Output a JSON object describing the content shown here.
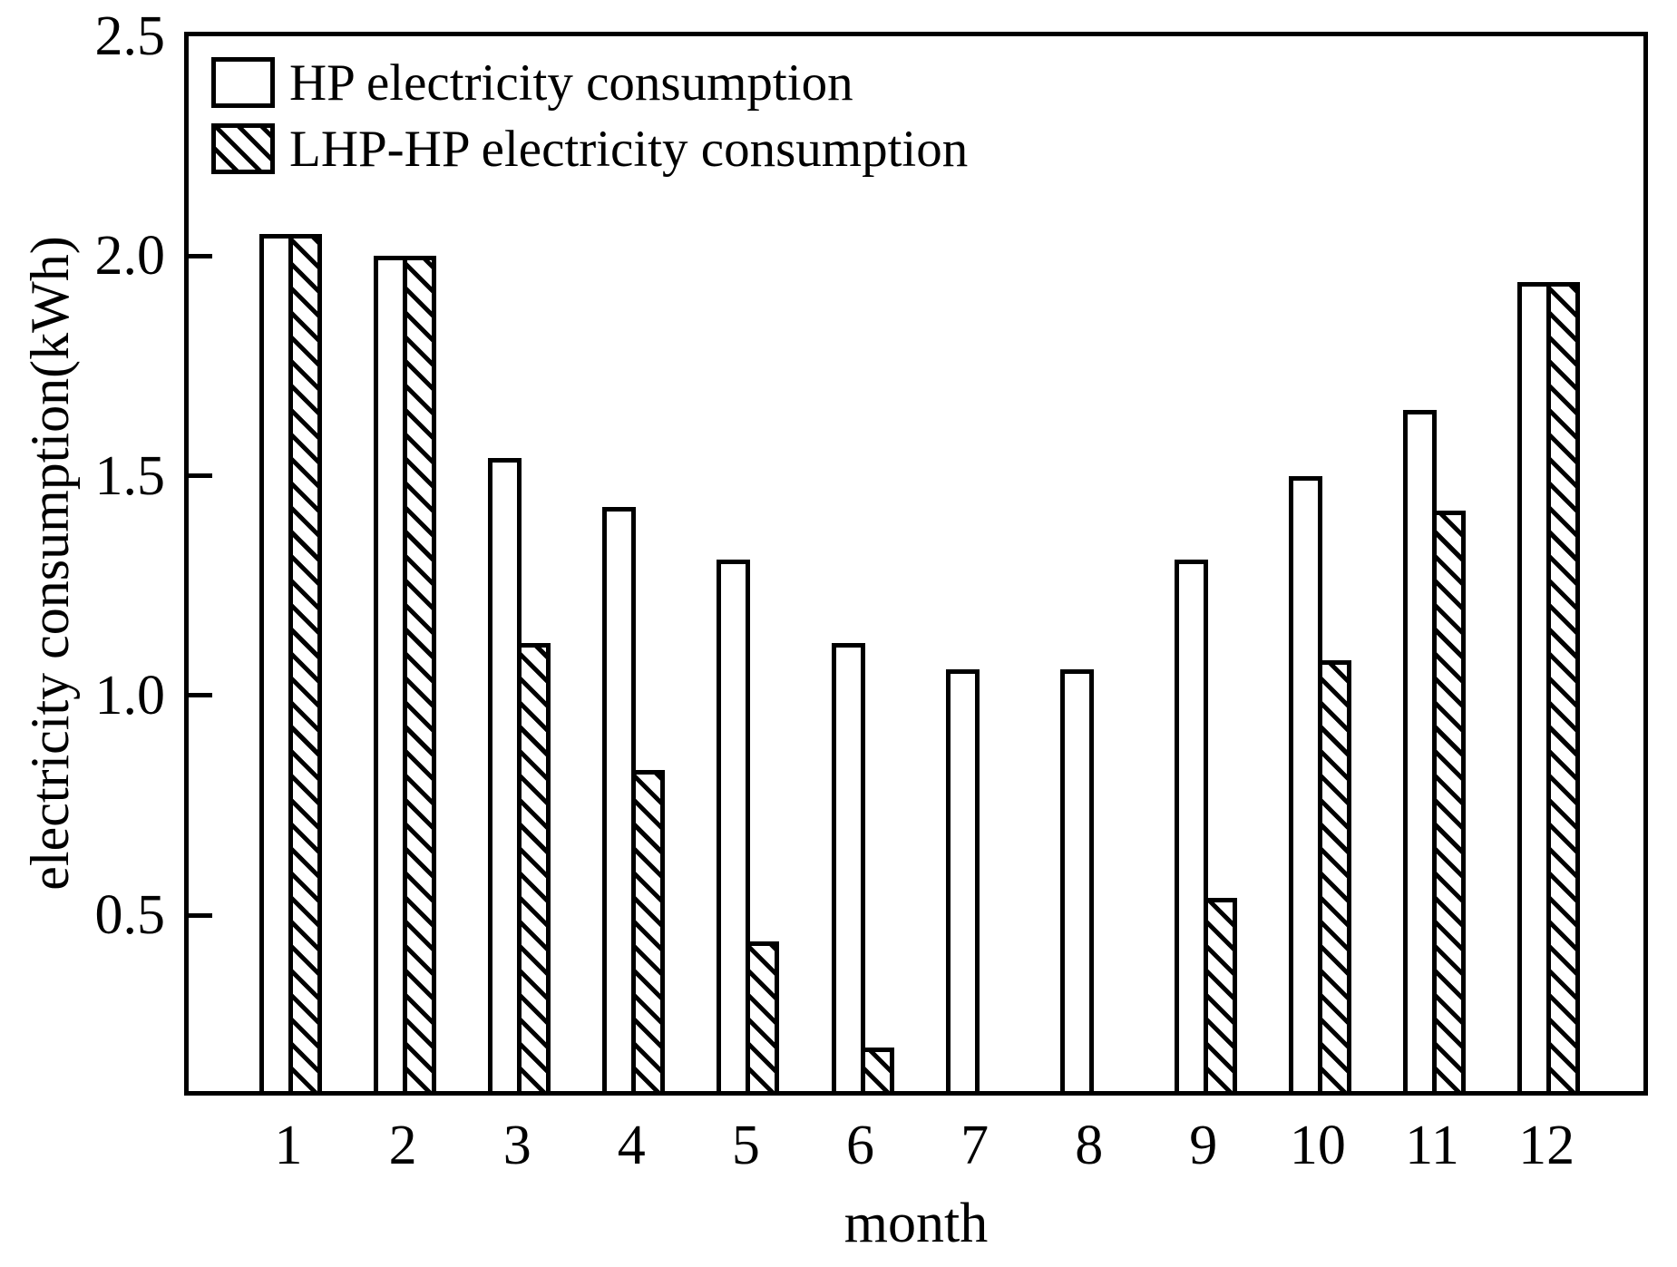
{
  "chart_data": {
    "type": "bar",
    "title": "",
    "xlabel": "month",
    "ylabel": "electricity consumption(kWh)",
    "categories": [
      "1",
      "2",
      "3",
      "4",
      "5",
      "6",
      "7",
      "8",
      "9",
      "10",
      "11",
      "12"
    ],
    "series": [
      {
        "name": "HP electricity consumption",
        "fill": "solid-white",
        "values": [
          2.05,
          2.0,
          1.54,
          1.43,
          1.31,
          1.12,
          1.06,
          1.06,
          1.31,
          1.5,
          1.65,
          1.94
        ]
      },
      {
        "name": "LHP-HP electricity consumption",
        "fill": "hatched-backslash",
        "values": [
          2.05,
          2.0,
          1.12,
          0.83,
          0.44,
          0.2,
          0,
          0,
          0.54,
          1.08,
          1.42,
          1.94
        ]
      }
    ],
    "ylim": [
      0.1,
      2.5
    ],
    "yticks": [
      0.5,
      1.0,
      1.5,
      2.0,
      2.5
    ],
    "ytick_labels": [
      "0.5",
      "1.0",
      "1.5",
      "2.0",
      "2.5"
    ],
    "legend_position": "top-left-inside",
    "grid": false,
    "frame": "full-box",
    "foreground_color": "#000000",
    "background_color": "#ffffff"
  }
}
